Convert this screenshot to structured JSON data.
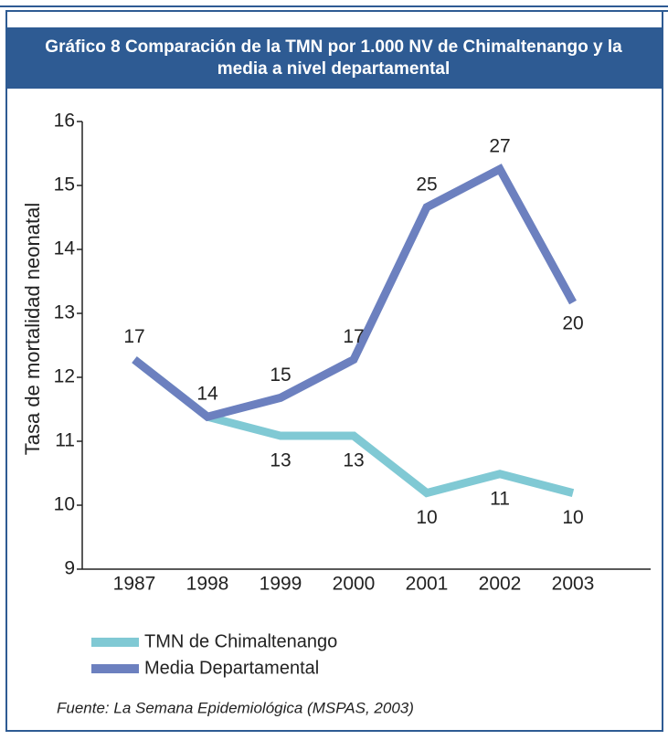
{
  "chart_data": {
    "type": "line",
    "title": "Gráfico 8 Comparación de la TMN por 1.000 NV de Chimaltenango y la media a nivel departamental",
    "y_label": "Tasa de mortalidad neonatal",
    "categories": [
      "1987",
      "1998",
      "1999",
      "2000",
      "2001",
      "2002",
      "2003"
    ],
    "ylim": [
      9,
      16
    ],
    "yticks": [
      9,
      10,
      11,
      12,
      13,
      14,
      15,
      16
    ],
    "y2lim": [
      6,
      29.5
    ],
    "series": [
      {
        "name": "TMN de Chimaltenango",
        "color": "#80c9d4",
        "axis": "y2",
        "values": [
          17,
          14,
          13,
          13,
          10,
          11,
          10
        ]
      },
      {
        "name": "Media Departamental",
        "color": "#6c80bf",
        "axis": "y2",
        "values": [
          17,
          14,
          15,
          17,
          25,
          27,
          20
        ]
      }
    ],
    "source": "Fuente: La Semana Epidemiológica (MSPAS, 2003)"
  }
}
